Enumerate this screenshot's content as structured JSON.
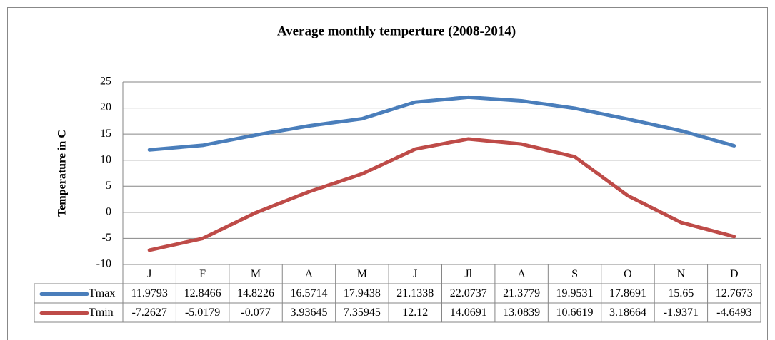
{
  "chart_data": {
    "type": "line",
    "title": "Average monthly temperture (2008-2014)",
    "y_label": "Temperature in C",
    "categories": [
      "J",
      "F",
      "M",
      "A",
      "M",
      "J",
      "Jl",
      "A",
      "S",
      "O",
      "N",
      "D"
    ],
    "series": [
      {
        "name": "Tmax",
        "color": "#4a7ebb",
        "values": [
          11.9793,
          12.8466,
          14.8226,
          16.5714,
          17.9438,
          21.1338,
          22.0737,
          21.3779,
          19.9531,
          17.8691,
          15.65,
          12.7673
        ]
      },
      {
        "name": "Tmin",
        "color": "#be4b48",
        "values": [
          -7.2627,
          -5.0179,
          -0.077,
          3.93645,
          7.35945,
          12.12,
          14.0691,
          13.0839,
          10.6619,
          3.18664,
          -1.9371,
          -4.6493
        ]
      }
    ],
    "ylim": [
      -10,
      25
    ],
    "yticks": [
      -10,
      -5,
      0,
      5,
      10,
      15,
      20,
      25
    ],
    "grid": true,
    "data_table": true
  }
}
